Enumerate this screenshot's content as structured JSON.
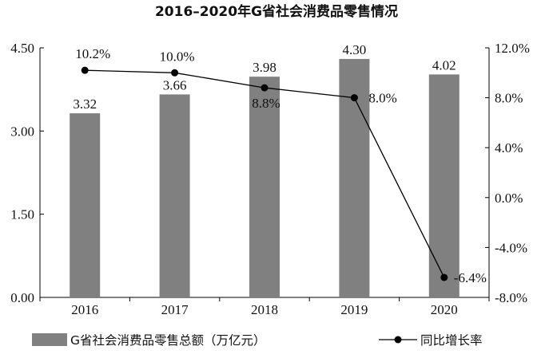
{
  "chart_data": {
    "type": "bar",
    "title": "2016–2020年G省社会消费品零售情况",
    "categories": [
      "2016",
      "2017",
      "2018",
      "2019",
      "2020"
    ],
    "series": [
      {
        "name": "G省社会消费品零售总额（万亿元）",
        "type": "bar",
        "axis": "left",
        "values": [
          3.32,
          3.66,
          3.98,
          4.3,
          4.02
        ],
        "labels": [
          "3.32",
          "3.66",
          "3.98",
          "4.30",
          "4.02"
        ],
        "color": "#808080"
      },
      {
        "name": "同比增长率",
        "type": "line",
        "axis": "right",
        "values": [
          10.2,
          10.0,
          8.8,
          8.0,
          -6.4
        ],
        "labels": [
          "10.2%",
          "10.0%",
          "8.8%",
          "8.0%",
          "-6.4%"
        ],
        "color": "#000000"
      }
    ],
    "y_left": {
      "ylim": [
        0,
        4.5
      ],
      "ticks": [
        "0.00",
        "1.50",
        "3.00",
        "4.50"
      ]
    },
    "y_right": {
      "ylim": [
        -8,
        12
      ],
      "ticks": [
        "-8.0%",
        "-4.0%",
        "0.0%",
        "4.0%",
        "8.0%",
        "12.0%"
      ]
    },
    "grid": false,
    "legend_position": "bottom"
  }
}
